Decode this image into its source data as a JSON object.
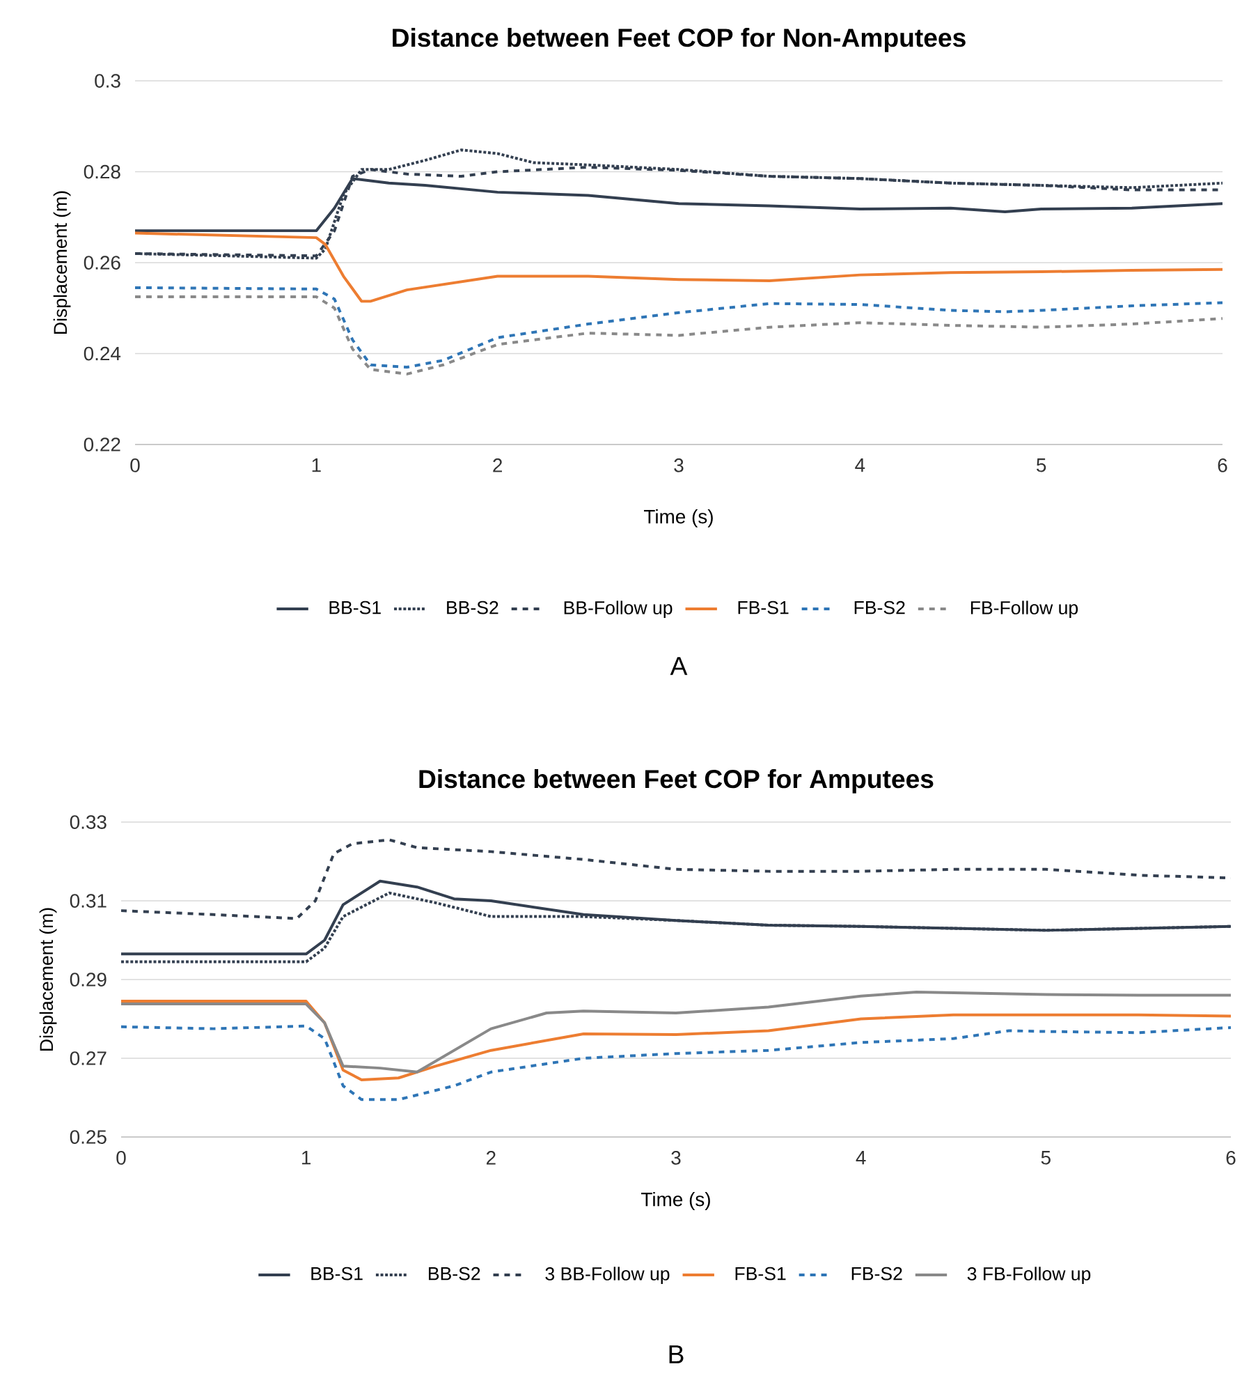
{
  "chart_data": [
    {
      "type": "line",
      "title": "Distance between Feet COP for Non-Amputees",
      "xlabel": "Time (s)",
      "ylabel": "Displacement (m)",
      "xlim": [
        0,
        6
      ],
      "ylim": [
        0.22,
        0.3
      ],
      "xticks": [
        0,
        1,
        2,
        3,
        4,
        5,
        6
      ],
      "yticks": [
        0.22,
        0.24,
        0.26,
        0.28,
        0.3
      ],
      "grid": "y",
      "legend": "bottom",
      "annotations": [
        "A"
      ],
      "series": [
        {
          "name": "BB-S1",
          "color": "#333f50",
          "line_style": "solid",
          "x": [
            0,
            1.0,
            1.1,
            1.2,
            1.4,
            1.6,
            2.0,
            2.5,
            3.0,
            3.5,
            4.0,
            4.5,
            4.8,
            5.0,
            5.5,
            6.0
          ],
          "values": [
            0.267,
            0.267,
            0.272,
            0.2785,
            0.2775,
            0.277,
            0.2755,
            0.2748,
            0.273,
            0.2725,
            0.2718,
            0.272,
            0.2712,
            0.2718,
            0.272,
            0.273
          ]
        },
        {
          "name": "BB-S2",
          "color": "#333f50",
          "line_style": "dotted",
          "x": [
            0,
            0.5,
            1.0,
            1.05,
            1.15,
            1.25,
            1.4,
            1.6,
            1.8,
            2.0,
            2.2,
            2.5,
            3.0,
            3.5,
            4.0,
            4.5,
            5.0,
            5.5,
            6.0
          ],
          "values": [
            0.262,
            0.2615,
            0.261,
            0.263,
            0.275,
            0.2805,
            0.2805,
            0.2825,
            0.2848,
            0.284,
            0.282,
            0.2815,
            0.2805,
            0.279,
            0.2785,
            0.2775,
            0.277,
            0.2765,
            0.2775
          ]
        },
        {
          "name": "BB-Follow up",
          "color": "#333f50",
          "line_style": "dashed",
          "x": [
            0,
            1.0,
            1.1,
            1.2,
            1.3,
            1.5,
            1.8,
            2.0,
            2.5,
            3.0,
            3.5,
            4.0,
            4.5,
            5.0,
            5.5,
            6.0
          ],
          "values": [
            0.262,
            0.2615,
            0.267,
            0.279,
            0.2805,
            0.2795,
            0.279,
            0.28,
            0.281,
            0.2803,
            0.279,
            0.2785,
            0.2775,
            0.277,
            0.276,
            0.276
          ]
        },
        {
          "name": "FB-S1",
          "color": "#ed7d31",
          "line_style": "solid",
          "x": [
            0,
            0.5,
            1.0,
            1.05,
            1.15,
            1.25,
            1.3,
            1.5,
            2.0,
            2.5,
            3.0,
            3.5,
            4.0,
            4.5,
            5.0,
            5.5,
            6.0
          ],
          "values": [
            0.2665,
            0.266,
            0.2655,
            0.264,
            0.257,
            0.2515,
            0.2515,
            0.254,
            0.257,
            0.257,
            0.2563,
            0.256,
            0.2573,
            0.2578,
            0.258,
            0.2583,
            0.2585
          ]
        },
        {
          "name": "FB-S2",
          "color": "#2e75b6",
          "line_style": "dashed",
          "x": [
            0,
            1.0,
            1.1,
            1.2,
            1.3,
            1.5,
            1.7,
            2.0,
            2.5,
            3.0,
            3.5,
            4.0,
            4.5,
            4.8,
            5.0,
            5.5,
            6.0
          ],
          "values": [
            0.2545,
            0.2542,
            0.252,
            0.243,
            0.2375,
            0.237,
            0.2385,
            0.2435,
            0.2465,
            0.249,
            0.251,
            0.2508,
            0.2495,
            0.2492,
            0.2495,
            0.2505,
            0.2512
          ]
        },
        {
          "name": "FB-Follow up",
          "color": "#898989",
          "line_style": "dashed",
          "x": [
            0,
            1.0,
            1.1,
            1.2,
            1.3,
            1.5,
            1.7,
            2.0,
            2.5,
            3.0,
            3.5,
            4.0,
            4.5,
            5.0,
            5.5,
            6.0
          ],
          "values": [
            0.2525,
            0.2525,
            0.25,
            0.241,
            0.2365,
            0.2355,
            0.2375,
            0.242,
            0.2445,
            0.244,
            0.2458,
            0.2468,
            0.2462,
            0.2458,
            0.2465,
            0.2477
          ]
        }
      ]
    },
    {
      "type": "line",
      "title": "Distance between Feet COP for Amputees",
      "xlabel": "Time (s)",
      "ylabel": "Displacement (m)",
      "xlim": [
        0,
        6
      ],
      "ylim": [
        0.25,
        0.33
      ],
      "xticks": [
        0,
        1,
        2,
        3,
        4,
        5,
        6
      ],
      "yticks": [
        0.25,
        0.27,
        0.29,
        0.31,
        0.33
      ],
      "grid": "y",
      "legend": "bottom",
      "annotations": [
        "B"
      ],
      "series": [
        {
          "name": "BB-S1",
          "color": "#333f50",
          "line_style": "solid",
          "x": [
            0,
            1.0,
            1.1,
            1.2,
            1.4,
            1.6,
            1.8,
            2.0,
            2.5,
            3.0,
            3.5,
            4.0,
            4.5,
            5.0,
            5.5,
            6.0
          ],
          "values": [
            0.2965,
            0.2965,
            0.3,
            0.309,
            0.315,
            0.3135,
            0.3105,
            0.31,
            0.3065,
            0.305,
            0.3038,
            0.3035,
            0.303,
            0.3025,
            0.303,
            0.3035
          ]
        },
        {
          "name": "BB-S2",
          "color": "#333f50",
          "line_style": "dotted",
          "x": [
            0,
            1.0,
            1.1,
            1.2,
            1.45,
            1.7,
            2.0,
            2.5,
            3.0,
            3.5,
            4.0,
            4.5,
            5.0,
            5.5,
            6.0
          ],
          "values": [
            0.2945,
            0.2945,
            0.298,
            0.306,
            0.312,
            0.3095,
            0.306,
            0.306,
            0.305,
            0.3038,
            0.3035,
            0.303,
            0.3025,
            0.303,
            0.3035
          ]
        },
        {
          "name": "3 BB-Follow up",
          "color": "#333f50",
          "line_style": "dashed",
          "x": [
            0,
            0.5,
            0.95,
            1.05,
            1.15,
            1.25,
            1.45,
            1.6,
            2.0,
            2.5,
            3.0,
            3.5,
            4.0,
            4.5,
            5.0,
            5.5,
            6.0
          ],
          "values": [
            0.3075,
            0.3065,
            0.3055,
            0.31,
            0.322,
            0.3245,
            0.3255,
            0.3235,
            0.3225,
            0.3205,
            0.318,
            0.3175,
            0.3175,
            0.318,
            0.318,
            0.3165,
            0.3158
          ]
        },
        {
          "name": "FB-S1",
          "color": "#ed7d31",
          "line_style": "solid",
          "x": [
            0,
            1.0,
            1.1,
            1.2,
            1.3,
            1.5,
            1.7,
            2.0,
            2.5,
            3.0,
            3.5,
            4.0,
            4.5,
            5.0,
            5.5,
            6.0
          ],
          "values": [
            0.2845,
            0.2845,
            0.279,
            0.267,
            0.2645,
            0.265,
            0.268,
            0.272,
            0.2762,
            0.276,
            0.277,
            0.28,
            0.281,
            0.281,
            0.281,
            0.2807
          ]
        },
        {
          "name": "FB-S2",
          "color": "#2e75b6",
          "line_style": "dashed",
          "x": [
            0,
            0.5,
            1.0,
            1.1,
            1.2,
            1.3,
            1.5,
            1.8,
            2.0,
            2.5,
            3.0,
            3.5,
            4.0,
            4.5,
            4.8,
            5.0,
            5.5,
            6.0
          ],
          "values": [
            0.278,
            0.2775,
            0.2782,
            0.275,
            0.263,
            0.2595,
            0.2595,
            0.263,
            0.2665,
            0.27,
            0.2712,
            0.272,
            0.274,
            0.275,
            0.277,
            0.2768,
            0.2765,
            0.2778
          ]
        },
        {
          "name": "3 FB-Follow up",
          "color": "#898989",
          "line_style": "solid",
          "x": [
            0,
            1.0,
            1.1,
            1.2,
            1.4,
            1.6,
            1.8,
            2.0,
            2.3,
            2.5,
            3.0,
            3.5,
            4.0,
            4.3,
            5.0,
            5.5,
            6.0
          ],
          "values": [
            0.2838,
            0.2838,
            0.279,
            0.268,
            0.2675,
            0.2665,
            0.272,
            0.2775,
            0.2815,
            0.282,
            0.2815,
            0.283,
            0.2858,
            0.2868,
            0.2862,
            0.286,
            0.286
          ]
        }
      ]
    }
  ]
}
